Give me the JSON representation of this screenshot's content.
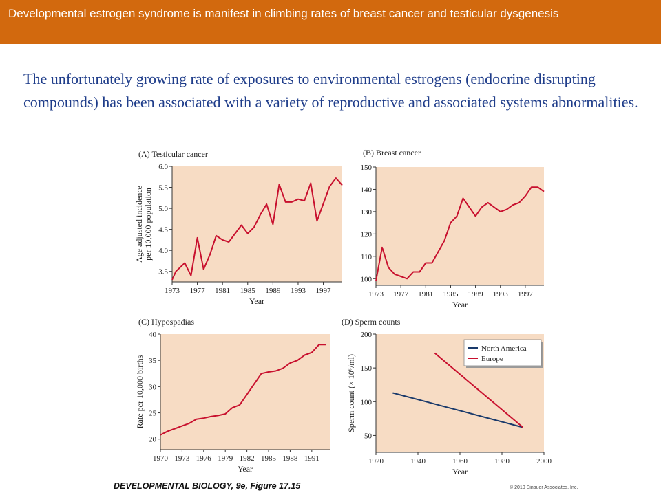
{
  "header": {
    "title": "Developmental estrogen syndrome is manifest in climbing rates of breast cancer and testicular dysgenesis"
  },
  "intro": {
    "text": "The unfortunately growing rate of exposures to environmental estrogens (endocrine disrupting compounds) has been associated with a variety of reproductive and associated systems abnormalities."
  },
  "footer": {
    "caption": "DEVELOPMENTAL BIOLOGY, 9e, Figure 17.15",
    "copyright": "© 2010 Sinauer Associates, Inc."
  },
  "colors": {
    "header_bg": "#d2690e",
    "intro_text": "#1f3d8a",
    "plot_bg": "#f7dcc4",
    "line_red": "#c8102e",
    "line_blue": "#1a3a6b"
  },
  "chart_data": [
    {
      "type": "line",
      "title": "(A) Testicular cancer",
      "xlabel": "Year",
      "ylabel": "Age adjusted incidence per 10,000 population",
      "xlim": [
        1973,
        2000
      ],
      "ylim": [
        3.25,
        6.0
      ],
      "xticks": [
        1973,
        1977,
        1981,
        1985,
        1989,
        1993,
        1997
      ],
      "yticks": [
        3.5,
        4.0,
        4.5,
        5.0,
        5.5,
        6.0
      ],
      "ytick_labels": [
        "3.5",
        "4.0",
        "4.5",
        "5.0",
        "5.5",
        "6.0"
      ],
      "series": [
        {
          "color": "#c8102e",
          "x": [
            1973,
            1973.6,
            1975,
            1976,
            1977,
            1978,
            1979,
            1980,
            1981,
            1982,
            1984,
            1985,
            1986,
            1987,
            1988,
            1989,
            1990,
            1991,
            1991.5,
            1992,
            1993,
            1994,
            1995,
            1996,
            1998,
            1999,
            2000
          ],
          "y": [
            3.3,
            3.5,
            3.7,
            3.4,
            4.3,
            3.55,
            3.9,
            4.35,
            4.25,
            4.2,
            4.6,
            4.4,
            4.55,
            4.85,
            5.1,
            4.62,
            5.57,
            5.15,
            5.15,
            5.15,
            5.22,
            5.18,
            5.6,
            4.7,
            5.52,
            5.72,
            5.55
          ]
        }
      ]
    },
    {
      "type": "line",
      "title": "(B) Breast cancer",
      "xlabel": "Year",
      "ylabel": "",
      "xlim": [
        1973,
        2000
      ],
      "ylim": [
        97,
        150
      ],
      "xticks": [
        1973,
        1977,
        1981,
        1985,
        1989,
        1993,
        1997
      ],
      "yticks": [
        100,
        110,
        120,
        130,
        140,
        150
      ],
      "ytick_labels": [
        "100",
        "110",
        "120",
        "130",
        "140",
        "150"
      ],
      "series": [
        {
          "color": "#c8102e",
          "x": [
            1973,
            1974,
            1975,
            1976,
            1977,
            1978,
            1979,
            1980,
            1981,
            1982,
            1983,
            1984,
            1985,
            1986,
            1987,
            1988,
            1989,
            1990,
            1991,
            1992,
            1993,
            1994,
            1995,
            1996,
            1997,
            1998,
            1999,
            2000
          ],
          "y": [
            99,
            114,
            105,
            102,
            101,
            100,
            103,
            103,
            107,
            107,
            112,
            117,
            125,
            128,
            136,
            132,
            128,
            132,
            134,
            132,
            130,
            131,
            133,
            134,
            137,
            141,
            141,
            139
          ]
        }
      ]
    },
    {
      "type": "line",
      "title": "(C) Hypospadias",
      "xlabel": "Year",
      "ylabel": "Rate per 10,000 births",
      "xlim": [
        1970,
        1993.5
      ],
      "ylim": [
        18,
        40
      ],
      "xticks": [
        1970,
        1973,
        1976,
        1979,
        1982,
        1985,
        1988,
        1991
      ],
      "yticks": [
        20,
        25,
        30,
        35,
        40
      ],
      "ytick_labels": [
        "20",
        "25",
        "30",
        "35",
        "40"
      ],
      "series": [
        {
          "color": "#c8102e",
          "x": [
            1970,
            1971,
            1972,
            1973,
            1974,
            1975,
            1976,
            1977,
            1978,
            1979,
            1980,
            1981,
            1982,
            1983,
            1984,
            1985,
            1986,
            1987,
            1988,
            1989,
            1990,
            1991,
            1992,
            1993
          ],
          "y": [
            20.8,
            21.5,
            22.0,
            22.5,
            23.0,
            23.8,
            24.0,
            24.3,
            24.5,
            24.8,
            26.0,
            26.5,
            28.5,
            30.5,
            32.5,
            32.8,
            33.0,
            33.5,
            34.5,
            35.0,
            36.0,
            36.5,
            38.0,
            38.0
          ]
        }
      ]
    },
    {
      "type": "line",
      "title": "(D) Sperm counts",
      "xlabel": "Year",
      "ylabel": "Sperm count (× 10⁶/ml)",
      "xlim": [
        1920,
        2000
      ],
      "ylim": [
        25,
        200
      ],
      "xticks": [
        1920,
        1940,
        1960,
        1980,
        2000
      ],
      "yticks": [
        50,
        100,
        150,
        200
      ],
      "ytick_labels": [
        "50",
        "100",
        "150",
        "200"
      ],
      "legend": {
        "placement": "top-right"
      },
      "series": [
        {
          "name": "North America",
          "color": "#1a3a6b",
          "x": [
            1928,
            1990
          ],
          "y": [
            113,
            62
          ]
        },
        {
          "name": "Europe",
          "color": "#c8102e",
          "x": [
            1948,
            1990
          ],
          "y": [
            172,
            62
          ]
        }
      ]
    }
  ]
}
